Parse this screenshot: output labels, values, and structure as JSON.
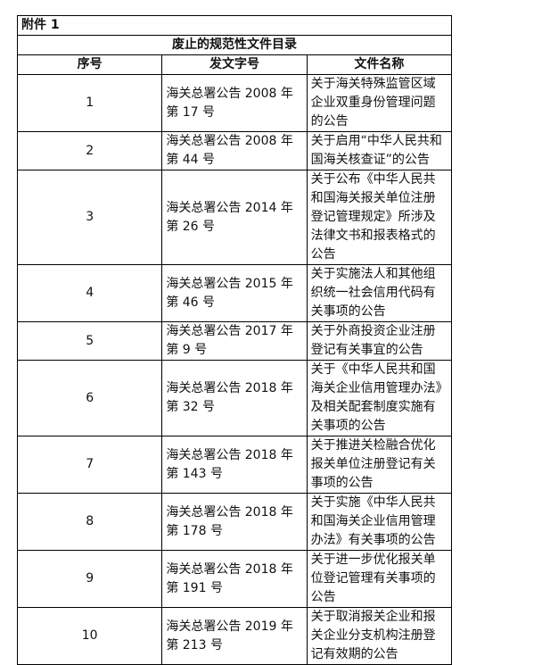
{
  "attachment": "附件 1",
  "title": "废止的规范性文件目录",
  "headers": [
    "序号",
    "发文字号",
    "文件名称"
  ],
  "rows": [
    {
      "no": "1",
      "doc": "海关总署公告 2008 年第 17 号",
      "name": "关于海关特殊监管区域企业双重身份管理问题的公告"
    },
    {
      "no": "2",
      "doc": "海关总署公告 2008 年第 44 号",
      "name": "关于启用“中华人民共和国海关核查证”的公告"
    },
    {
      "no": "3",
      "doc": "海关总署公告 2014 年第 26 号",
      "name": "关于公布《中华人民共和国海关报关单位注册登记管理规定》所涉及法律文书和报表格式的公告"
    },
    {
      "no": "4",
      "doc": "海关总署公告 2015 年第 46 号",
      "name": "关于实施法人和其他组织统一社会信用代码有关事项的公告"
    },
    {
      "no": "5",
      "doc": "海关总署公告 2017 年第 9 号",
      "name": "关于外商投资企业注册登记有关事宜的公告"
    },
    {
      "no": "6",
      "doc": "海关总署公告 2018 年第 32 号",
      "name": "关于《中华人民共和国海关企业信用管理办法》及相关配套制度实施有关事项的公告"
    },
    {
      "no": "7",
      "doc": "海关总署公告 2018 年第 143 号",
      "name": "关于推进关检融合优化报关单位注册登记有关事项的公告"
    },
    {
      "no": "8",
      "doc": "海关总署公告 2018 年第 178 号",
      "name": "关于实施《中华人民共和国海关企业信用管理办法》有关事项的公告"
    },
    {
      "no": "9",
      "doc": "海关总署公告 2018 年第 191 号",
      "name": "关于进一步优化报关单位登记管理有关事项的公告"
    },
    {
      "no": "10",
      "doc": "海关总署公告 2019 年第 213 号",
      "name": "关于取消报关企业和报关企业分支机构注册登记有效期的公告"
    }
  ]
}
